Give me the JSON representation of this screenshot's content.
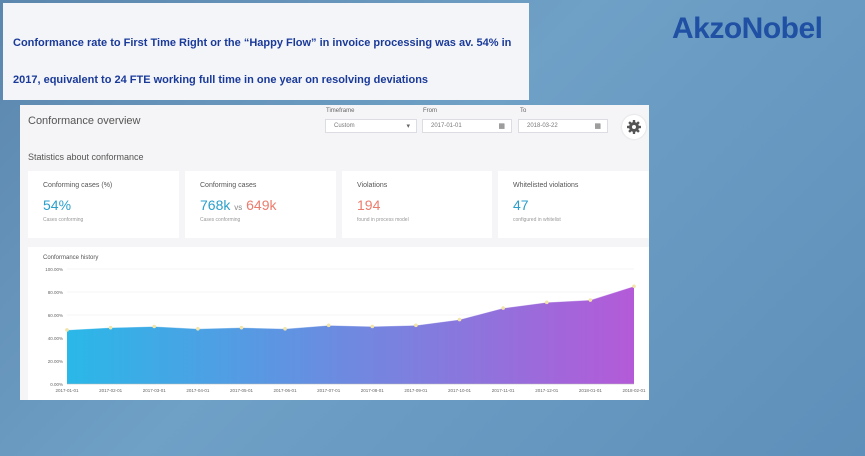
{
  "headline": {
    "line1": "Conformance rate to First Time Right or the “Happy Flow” in invoice processing was av. 54% in",
    "line2": "2017, equivalent to 24 FTE working full time in one year on resolving deviations"
  },
  "logo": "AkzoNobel",
  "dashboard": {
    "title": "Conformance overview",
    "timeframe": {
      "label": "Timeframe",
      "value": "Custom"
    },
    "from": {
      "label": "From",
      "value": "2017-01-01"
    },
    "to": {
      "label": "To",
      "value": "2018-03-22"
    },
    "section_title": "Statistics about conformance",
    "cards": [
      {
        "label": "Conforming cases (%)",
        "value": "54%",
        "sub": "Cases conforming"
      },
      {
        "label": "Conforming cases",
        "value_a": "768k",
        "vs": "vs",
        "value_b": "649k",
        "sub": "Cases conforming"
      },
      {
        "label": "Violations",
        "value": "194",
        "sub": "found in process model"
      },
      {
        "label": "Whitelisted violations",
        "value": "47",
        "sub": "configured in whitelist"
      }
    ],
    "history_title": "Conformance history"
  },
  "colors": {
    "teal": "#2a9fcc",
    "red": "#ec7c6e",
    "area_start": "#2ab8e8",
    "area_end": "#b45ad8",
    "point": "#f2e3a6"
  },
  "chart_data": {
    "type": "area",
    "x": [
      "2017-01-01",
      "2017-02-01",
      "2017-03-01",
      "2017-04-01",
      "2017-05-01",
      "2017-06-01",
      "2017-07-01",
      "2017-08-01",
      "2017-09-01",
      "2017-10-01",
      "2017-11-01",
      "2017-12-01",
      "2018-01-01",
      "2018-02-01"
    ],
    "values": [
      47,
      49,
      50,
      48,
      49,
      48,
      51,
      50,
      51,
      56,
      66,
      71,
      73,
      85
    ],
    "yticks": [
      "0.00%",
      "20.00%",
      "40.00%",
      "60.00%",
      "80.00%",
      "100.00%"
    ],
    "ylim": [
      0,
      100
    ],
    "grid": true
  }
}
